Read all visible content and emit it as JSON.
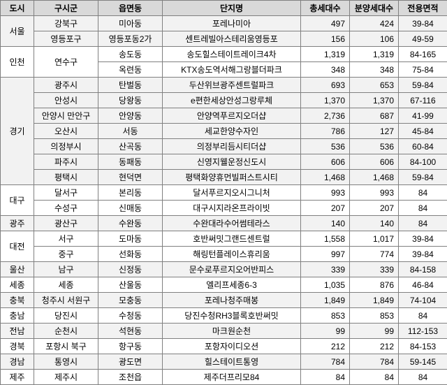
{
  "header_bg": "#d9d9d9",
  "row_bg_a": "#f2f2f2",
  "row_bg_b": "#ffffff",
  "columns": [
    "도시",
    "구시군",
    "읍면동",
    "단지명",
    "총세대수",
    "분양세대수",
    "전용면적"
  ],
  "cities": [
    {
      "city": "서울",
      "bg": "a",
      "rows": [
        {
          "gu": "강북구",
          "dong": "미아동",
          "name": "포레나미아",
          "total": "497",
          "sale": "424",
          "area": "39-84"
        },
        {
          "gu": "영등포구",
          "dong": "영등포동2가",
          "name": "센트레빌아스테리움영등포",
          "total": "156",
          "sale": "106",
          "area": "49-59"
        }
      ]
    },
    {
      "city": "인천",
      "bg": "b",
      "gu_merge": "연수구",
      "rows": [
        {
          "dong": "송도동",
          "name": "송도힐스테이트레이크4차",
          "total": "1,319",
          "sale": "1,319",
          "area": "84-165"
        },
        {
          "dong": "옥련동",
          "name": "KTX송도역서해그랑블더파크",
          "total": "348",
          "sale": "348",
          "area": "75-84"
        }
      ]
    },
    {
      "city": "경기",
      "bg": "a",
      "rows": [
        {
          "gu": "광주시",
          "dong": "탄벌동",
          "name": "두산위브광주센트럴파크",
          "total": "693",
          "sale": "653",
          "area": "59-84"
        },
        {
          "gu": "안성시",
          "dong": "당왕동",
          "name": "e편한세상안성그랑루체",
          "total": "1,370",
          "sale": "1,370",
          "area": "67-116"
        },
        {
          "gu": "안양시 만안구",
          "dong": "안양동",
          "name": "안양역푸르지오더샵",
          "total": "2,736",
          "sale": "687",
          "area": "41-99"
        },
        {
          "gu": "오산시",
          "dong": "서동",
          "name": "세교한양수자인",
          "total": "786",
          "sale": "127",
          "area": "45-84"
        },
        {
          "gu": "의정부시",
          "dong": "산곡동",
          "name": "의정부리듬시티더샵",
          "total": "536",
          "sale": "536",
          "area": "60-84"
        },
        {
          "gu": "파주시",
          "dong": "동패동",
          "name": "신영지웰운정신도시",
          "total": "606",
          "sale": "606",
          "area": "84-100"
        },
        {
          "gu": "평택시",
          "dong": "현덕면",
          "name": "평택화양휴먼빌퍼스트시티",
          "total": "1,468",
          "sale": "1,468",
          "area": "59-84"
        }
      ]
    },
    {
      "city": "대구",
      "bg": "b",
      "rows": [
        {
          "gu": "달서구",
          "dong": "본리동",
          "name": "달서푸르지오시그니처",
          "total": "993",
          "sale": "993",
          "area": "84"
        },
        {
          "gu": "수성구",
          "dong": "신매동",
          "name": "대구시지라온프라이빗",
          "total": "207",
          "sale": "207",
          "area": "84"
        }
      ]
    },
    {
      "city": "광주",
      "bg": "a",
      "rows": [
        {
          "gu": "광산구",
          "dong": "수완동",
          "name": "수완대라수어썸테라스",
          "total": "140",
          "sale": "140",
          "area": "84"
        }
      ]
    },
    {
      "city": "대전",
      "bg": "b",
      "rows": [
        {
          "gu": "서구",
          "dong": "도마동",
          "name": "호반써밋그랜드센트럴",
          "total": "1,558",
          "sale": "1,017",
          "area": "39-84"
        },
        {
          "gu": "중구",
          "dong": "선화동",
          "name": "해링턴플레이스휴리움",
          "total": "997",
          "sale": "774",
          "area": "39-84"
        }
      ]
    },
    {
      "city": "울산",
      "bg": "a",
      "rows": [
        {
          "gu": "남구",
          "dong": "신정동",
          "name": "문수로푸르지오어반피스",
          "total": "339",
          "sale": "339",
          "area": "84-158"
        }
      ]
    },
    {
      "city": "세종",
      "bg": "b",
      "rows": [
        {
          "gu": "세종",
          "dong": "산울동",
          "name": "엘리프세종6-3",
          "total": "1,035",
          "sale": "876",
          "area": "46-84"
        }
      ]
    },
    {
      "city": "충북",
      "bg": "a",
      "rows": [
        {
          "gu": "청주시 서원구",
          "dong": "모충동",
          "name": "포레나청주매봉",
          "total": "1,849",
          "sale": "1,849",
          "area": "74-104"
        }
      ]
    },
    {
      "city": "충남",
      "bg": "b",
      "rows": [
        {
          "gu": "당진시",
          "dong": "수청동",
          "name": "당진수청RH3블록호반써밋",
          "total": "853",
          "sale": "853",
          "area": "84"
        }
      ]
    },
    {
      "city": "전남",
      "bg": "a",
      "rows": [
        {
          "gu": "순천시",
          "dong": "석현동",
          "name": "마크원순천",
          "total": "99",
          "sale": "99",
          "area": "112-153"
        }
      ]
    },
    {
      "city": "경북",
      "bg": "b",
      "rows": [
        {
          "gu": "포항시 북구",
          "dong": "항구동",
          "name": "포항자이디오션",
          "total": "212",
          "sale": "212",
          "area": "84-153"
        }
      ]
    },
    {
      "city": "경남",
      "bg": "a",
      "rows": [
        {
          "gu": "통영시",
          "dong": "광도면",
          "name": "힐스테이트통영",
          "total": "784",
          "sale": "784",
          "area": "59-145"
        }
      ]
    },
    {
      "city": "제주",
      "bg": "b",
      "rows": [
        {
          "gu": "제주시",
          "dong": "조천읍",
          "name": "제주더프리모84",
          "total": "84",
          "sale": "84",
          "area": "84"
        }
      ]
    }
  ]
}
